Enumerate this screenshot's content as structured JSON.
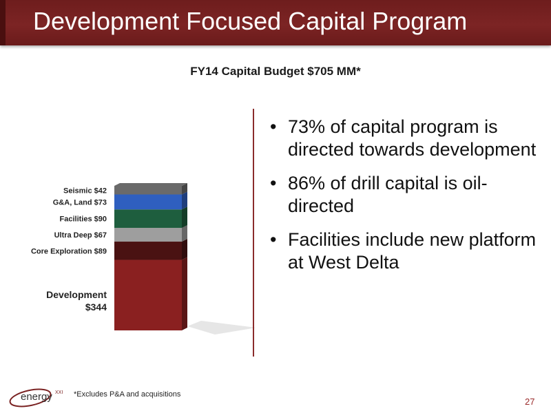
{
  "slide": {
    "title": "Development Focused Capital Program",
    "footnote": "*Excludes P&A and acquisitions",
    "page_number": "27",
    "logo_text": "energy",
    "logo_superscript": "XXI"
  },
  "bullets": [
    "73% of capital program is directed towards development",
    "86% of drill capital is oil-directed",
    "Facilities include new platform at West Delta"
  ],
  "colors": {
    "header": "#7a2222",
    "development": "#8a2020",
    "core_exploration": "#4a1212",
    "ultra_deep": "#9e9e9e",
    "facilities": "#1e5e3e",
    "ga_land": "#2f5fbf",
    "seismic": "#6a6a6a"
  },
  "chart_data": {
    "type": "bar",
    "stacked": true,
    "title": "FY14 Capital Budget $705 MM*",
    "categories": [
      "FY14"
    ],
    "series": [
      {
        "name": "Development",
        "label_line1": "Development",
        "label_line2": "$344",
        "values": [
          344
        ],
        "color": "#8a2020"
      },
      {
        "name": "Core Exploration",
        "label_line1": "Core Exploration $89",
        "values": [
          89
        ],
        "color": "#4a1212"
      },
      {
        "name": "Ultra Deep",
        "label_line1": "Ultra Deep $67",
        "values": [
          67
        ],
        "color": "#9e9e9e"
      },
      {
        "name": "Facilities",
        "label_line1": "Facilities $90",
        "values": [
          90
        ],
        "color": "#1e5e3e"
      },
      {
        "name": "G&A, Land",
        "label_line1": "G&A, Land $73",
        "values": [
          73
        ],
        "color": "#2f5fbf"
      },
      {
        "name": "Seismic",
        "label_line1": "Seismic $42",
        "values": [
          42
        ],
        "color": "#6a6a6a"
      }
    ],
    "total": 705,
    "units": "$MM"
  }
}
